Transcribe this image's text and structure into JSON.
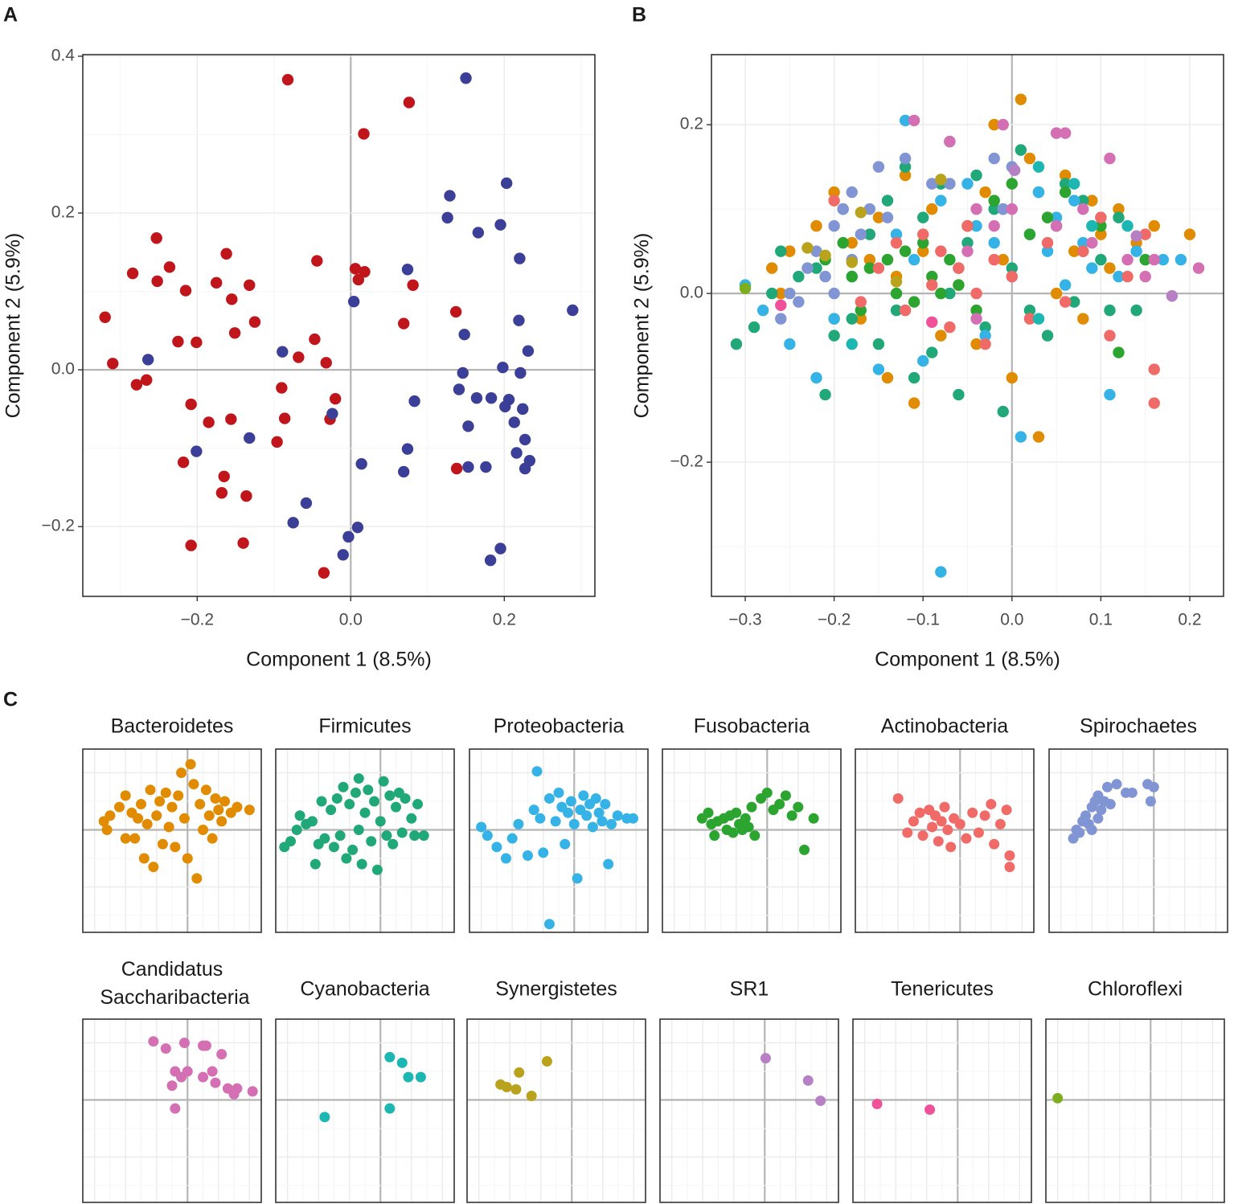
{
  "panel_labels": [
    "A",
    "B",
    "C"
  ],
  "chart_data": [
    {
      "type": "scatter",
      "x_label": "Component 1 (8.5%)",
      "y_label": "Component 2 (5.9%)",
      "xlim": [
        -0.349,
        0.318
      ],
      "ylim": [
        -0.289,
        0.402
      ],
      "xticks": [
        {
          "value": -0.2,
          "label": "−0.2"
        },
        {
          "value": 0,
          "label": "0.0"
        },
        0.2
      ],
      "yticks": [
        {
          "value": -0.2,
          "label": "−0.2"
        },
        {
          "value": 0,
          "label": "0.0"
        },
        0.2,
        0.4
      ],
      "grid": true,
      "zero_lines": true,
      "series": [
        {
          "color": "#c1151c",
          "x": [
            -0.082,
            0.076,
            0.017,
            -0.253,
            -0.284,
            -0.252,
            -0.236,
            -0.215,
            -0.162,
            -0.175,
            -0.155,
            -0.132,
            -0.125,
            -0.151,
            -0.225,
            -0.201,
            -0.32,
            -0.31,
            -0.266,
            -0.279,
            -0.208,
            -0.185,
            -0.156,
            -0.218,
            -0.165,
            -0.168,
            -0.136,
            -0.14,
            -0.208,
            -0.044,
            0.006,
            0.018,
            0.01,
            0.081,
            -0.047,
            -0.068,
            -0.032,
            -0.09,
            -0.086,
            -0.096,
            -0.027,
            -0.02,
            0.069,
            0.137,
            0.138,
            -0.035
          ],
          "values": [
            0.37,
            0.341,
            0.301,
            0.168,
            0.123,
            0.113,
            0.131,
            0.101,
            0.148,
            0.111,
            0.09,
            0.108,
            0.061,
            0.047,
            0.036,
            0.035,
            0.067,
            0.008,
            -0.013,
            -0.019,
            -0.044,
            -0.067,
            -0.063,
            -0.118,
            -0.136,
            -0.157,
            -0.161,
            -0.221,
            -0.224,
            0.139,
            0.129,
            0.125,
            0.115,
            0.108,
            0.039,
            0.016,
            0.009,
            -0.023,
            -0.062,
            -0.092,
            -0.063,
            -0.037,
            0.059,
            0.074,
            -0.126,
            -0.259
          ]
        },
        {
          "color": "#3b3f97",
          "x": [
            0.15,
            0.129,
            0.203,
            0.126,
            0.166,
            0.195,
            0.22,
            0.074,
            0.289,
            0.148,
            0.219,
            0.004,
            -0.089,
            -0.264,
            0.231,
            0.146,
            0.198,
            0.221,
            0.141,
            0.164,
            0.183,
            0.206,
            0.083,
            0.201,
            0.224,
            0.153,
            0.213,
            -0.024,
            -0.132,
            0.227,
            0.074,
            -0.201,
            0.216,
            0.233,
            0.014,
            0.069,
            0.153,
            0.176,
            0.227,
            -0.058,
            -0.075,
            0.009,
            -0.003,
            -0.01,
            0.195,
            0.182
          ],
          "values": [
            0.372,
            0.222,
            0.238,
            0.194,
            0.175,
            0.185,
            0.142,
            0.128,
            0.076,
            0.045,
            0.063,
            0.087,
            0.023,
            0.013,
            0.024,
            -0.004,
            0.003,
            -0.004,
            -0.025,
            -0.036,
            -0.036,
            -0.038,
            -0.04,
            -0.047,
            -0.05,
            -0.072,
            -0.067,
            -0.056,
            -0.087,
            -0.089,
            -0.101,
            -0.104,
            -0.106,
            -0.116,
            -0.12,
            -0.13,
            -0.124,
            -0.124,
            -0.126,
            -0.17,
            -0.195,
            -0.201,
            -0.213,
            -0.236,
            -0.228,
            -0.243
          ]
        }
      ]
    },
    {
      "type": "scatter",
      "facets": true,
      "x_label": "Component 1 (8.5%)",
      "y_label": "Component 2 (5.9%)",
      "xlim": [
        -0.338,
        0.238
      ],
      "ylim": [
        -0.359,
        0.283
      ],
      "xticks": [
        {
          "value": -0.3,
          "label": "−0.3"
        },
        {
          "value": -0.2,
          "label": "−0.2"
        },
        {
          "value": -0.1,
          "label": "−0.1"
        },
        {
          "value": 0,
          "label": "0.0"
        },
        0.1,
        0.2
      ],
      "yticks": [
        {
          "value": -0.2,
          "label": "−0.2"
        },
        {
          "value": 0,
          "label": "0.0"
        },
        0.2
      ],
      "grid": true,
      "zero_lines": true,
      "series": [
        {
          "name": "Bacteroidetes",
          "color": "#e08b00",
          "x": [
            -0.27,
            -0.26,
            -0.25,
            -0.22,
            -0.2,
            -0.18,
            -0.17,
            -0.15,
            -0.14,
            -0.13,
            -0.12,
            -0.11,
            -0.1,
            -0.09,
            -0.08,
            -0.07,
            -0.06,
            -0.05,
            -0.04,
            -0.03,
            -0.02,
            -0.01,
            0,
            0.01,
            0.02,
            0.03,
            0.04,
            0.05,
            0.06,
            0.07,
            0.08,
            0.09,
            0.1,
            0.11,
            0.12,
            0.14,
            0.16,
            0.2,
            -0.2,
            -0.16
          ],
          "values": [
            0.03,
            0,
            0.05,
            0.08,
            0.12,
            0.06,
            -0.03,
            0.09,
            -0.1,
            0.02,
            0.14,
            -0.13,
            0.05,
            0.1,
            -0.05,
            0.13,
            0.01,
            0.08,
            -0.06,
            0.12,
            0.2,
            0.04,
            -0.1,
            0.23,
            0.16,
            -0.17,
            0.09,
            0,
            0.14,
            0.05,
            -0.03,
            0.11,
            0.07,
            0.03,
            0.1,
            0.06,
            0.08,
            0.07,
            -0.03,
            0.04
          ]
        },
        {
          "name": "Firmicutes",
          "color": "#21a878",
          "x": [
            -0.31,
            -0.29,
            -0.27,
            -0.26,
            -0.24,
            -0.22,
            -0.2,
            -0.19,
            -0.18,
            -0.16,
            -0.15,
            -0.14,
            -0.13,
            -0.12,
            -0.11,
            -0.1,
            -0.09,
            -0.08,
            -0.07,
            -0.06,
            -0.05,
            -0.04,
            -0.03,
            -0.02,
            -0.01,
            0,
            0.01,
            0.02,
            0.03,
            0.04,
            0.05,
            0.06,
            0.07,
            0.08,
            0.1,
            0.11,
            0.12,
            0.14,
            -0.07,
            -0.21
          ],
          "values": [
            -0.06,
            -0.04,
            0,
            0.05,
            0.02,
            0.03,
            -0.05,
            0.1,
            -0.03,
            0.07,
            -0.06,
            0.11,
            -0.02,
            0.15,
            -0.1,
            0.09,
            -0.07,
            0.13,
            0,
            -0.12,
            0.06,
            0.14,
            -0.04,
            0.1,
            -0.14,
            0.03,
            0.17,
            -0.02,
            0.12,
            -0.05,
            0.08,
            0.13,
            -0.01,
            0.11,
            0.04,
            -0.02,
            0.09,
            -0.02,
            0.18,
            -0.12
          ]
        },
        {
          "name": "Proteobacteria",
          "color": "#35b3e6",
          "x": [
            -0.3,
            -0.28,
            -0.25,
            -0.22,
            -0.2,
            -0.18,
            -0.15,
            -0.13,
            -0.12,
            -0.11,
            -0.1,
            -0.08,
            -0.08,
            -0.06,
            -0.05,
            -0.04,
            -0.03,
            -0.02,
            -0.01,
            0,
            0.01,
            0.02,
            0.03,
            0.04,
            0.05,
            0.06,
            0.07,
            0.08,
            0.09,
            0.1,
            0.11,
            0.12,
            0.14,
            0.17,
            0.19
          ],
          "values": [
            0.01,
            -0.02,
            -0.06,
            -0.1,
            -0.03,
            0.02,
            -0.09,
            0.07,
            0.205,
            0.04,
            -0.08,
            -0.33,
            0.11,
            0.03,
            0.13,
            0.08,
            -0.05,
            0.06,
            0.1,
            0.02,
            -0.17,
            0.07,
            0.12,
            0.05,
            0.09,
            0.01,
            0.11,
            0.06,
            0.03,
            0.09,
            -0.12,
            0.02,
            0.05,
            0.04,
            0.04
          ]
        },
        {
          "name": "Fusobacteria",
          "color": "#2ca530",
          "x": [
            -0.21,
            -0.19,
            -0.18,
            -0.17,
            -0.16,
            -0.14,
            -0.13,
            -0.12,
            -0.11,
            -0.1,
            -0.09,
            -0.08,
            -0.07,
            -0.06,
            -0.05,
            -0.04,
            -0.02,
            0,
            0.02,
            0.04,
            0.06,
            0.08,
            0.1,
            0.12,
            0.15
          ],
          "values": [
            0.04,
            0.06,
            0.02,
            -0.02,
            0.03,
            0.04,
            0,
            0.05,
            -0.01,
            0.06,
            0.02,
            0,
            0.04,
            0.01,
            0.08,
            -0.02,
            0.11,
            0.13,
            0.07,
            0.09,
            0.12,
            0.05,
            0.08,
            -0.07,
            0.04
          ]
        },
        {
          "name": "Actinobacteria",
          "color": "#f06a67",
          "x": [
            -0.2,
            -0.17,
            -0.15,
            -0.13,
            -0.12,
            -0.1,
            -0.09,
            -0.08,
            -0.07,
            -0.06,
            -0.05,
            -0.04,
            -0.03,
            -0.02,
            0,
            0.02,
            0.04,
            0.06,
            0.08,
            0.1,
            0.11,
            0.13,
            0.15,
            0.16,
            0.16
          ],
          "values": [
            0.11,
            -0.01,
            0.03,
            0.06,
            -0.02,
            0.07,
            0.01,
            0.05,
            -0.04,
            0.03,
            0.08,
            0,
            -0.06,
            0.04,
            0.02,
            -0.03,
            0.06,
            -0.01,
            0.05,
            0.09,
            -0.05,
            0.02,
            0.07,
            -0.09,
            -0.13
          ]
        },
        {
          "name": "Spirochaetes",
          "color": "#8194d3",
          "x": [
            -0.26,
            -0.25,
            -0.24,
            -0.23,
            -0.22,
            -0.21,
            -0.2,
            -0.2,
            -0.19,
            -0.18,
            -0.18,
            -0.17,
            -0.16,
            -0.15,
            -0.14,
            -0.12,
            -0.09,
            -0.07,
            -0.02,
            -0.01,
            0
          ],
          "values": [
            -0.03,
            0,
            -0.01,
            0.03,
            0.05,
            0.02,
            0.08,
            0,
            0.1,
            0.04,
            0.12,
            0.07,
            0.1,
            0.15,
            0.09,
            0.16,
            0.13,
            0.13,
            0.16,
            0.1,
            0.15
          ]
        },
        {
          "name": "Candidatus Saccharibacteria",
          "color": "#d36fb2",
          "x": [
            -0.11,
            -0.07,
            -0.04,
            -0.05,
            -0.04,
            -0.02,
            -0.01,
            0,
            0.05,
            0.06,
            0.05,
            0.09,
            0.13,
            0.15,
            0.16,
            0.21,
            0.11,
            0.08
          ],
          "values": [
            0.205,
            0.18,
            0.1,
            0.05,
            -0.03,
            0.08,
            0.2,
            0.1,
            0.19,
            0.19,
            0.08,
            0.06,
            0.04,
            0.02,
            0.04,
            0.03,
            0.16,
            0.1
          ]
        },
        {
          "name": "Cyanobacteria",
          "color": "#1cb6b3",
          "x": [
            0.03,
            0.07,
            0.09,
            0.13,
            0.03,
            -0.18
          ],
          "values": [
            0.15,
            0.13,
            0.08,
            0.08,
            -0.03,
            -0.06
          ]
        },
        {
          "name": "Synergistetes",
          "color": "#b9a21c",
          "x": [
            -0.17,
            -0.08,
            -0.23,
            -0.21,
            -0.18,
            -0.13
          ],
          "values": [
            0.096,
            0.135,
            0.054,
            0.045,
            0.037,
            0.014
          ]
        },
        {
          "name": "SR1",
          "color": "#b780c4",
          "x": [
            0.003,
            0.14,
            0.18
          ],
          "values": [
            0.146,
            0.068,
            -0.003
          ]
        },
        {
          "name": "Tenericutes",
          "color": "#ef5299",
          "x": [
            -0.26,
            -0.09
          ],
          "values": [
            -0.014,
            -0.034
          ]
        },
        {
          "name": "Chloroflexi",
          "color": "#7cae20",
          "x": [
            -0.3
          ],
          "values": [
            0.006
          ]
        }
      ]
    }
  ]
}
